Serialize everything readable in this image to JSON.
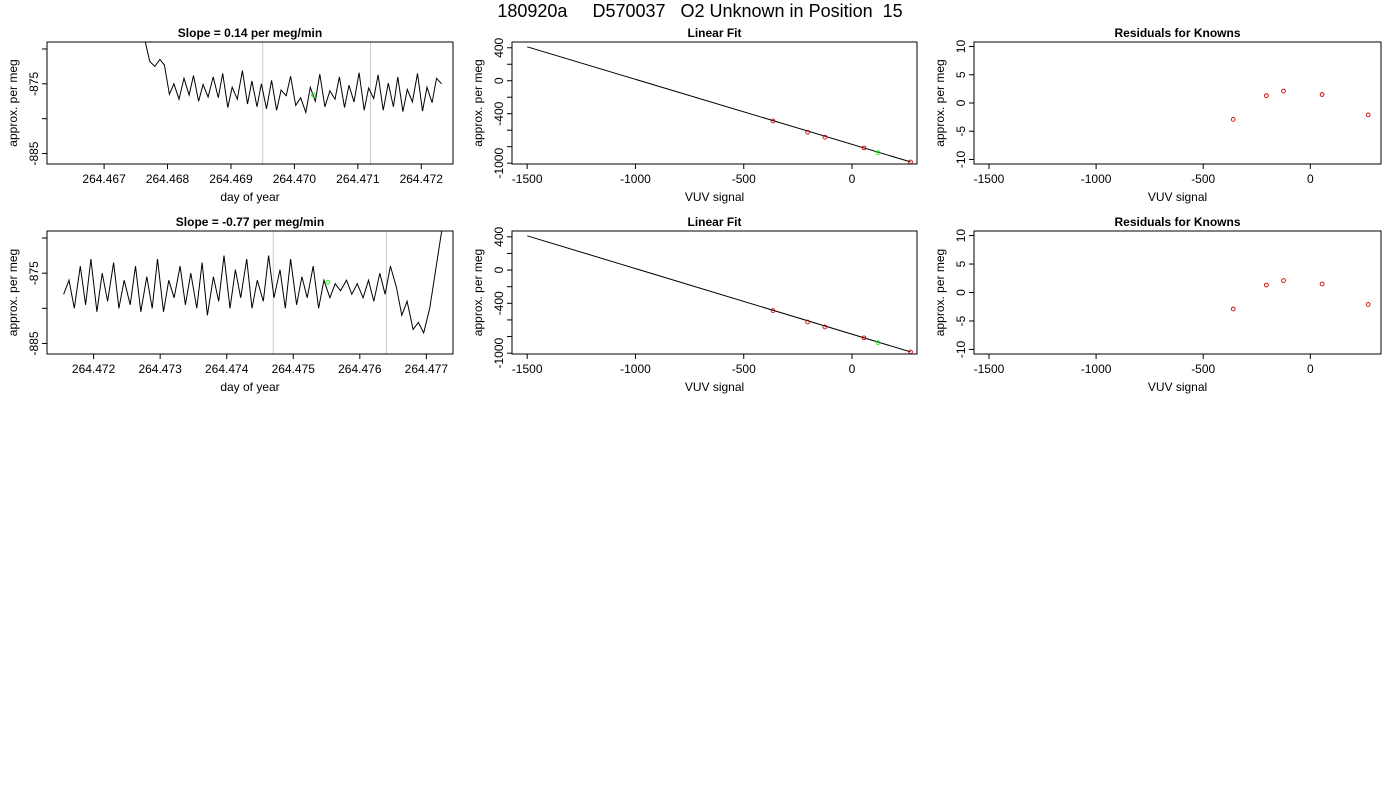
{
  "page": {
    "title": "180920a     D570037   O2 Unknown in Position  15"
  },
  "chart_data": [
    {
      "type": "line",
      "title": "Slope =  0.14  per meg/min",
      "xlabel": "day of year",
      "ylabel": "approx. per meg",
      "xlim": [
        264.4661,
        264.4725
      ],
      "ylim": [
        -886.5,
        -869.0
      ],
      "xticks": [
        "264.467",
        "264.468",
        "264.469",
        "264.470",
        "264.471",
        "264.472"
      ],
      "xtick_values": [
        264.467,
        264.468,
        264.469,
        264.47,
        264.471,
        264.472
      ],
      "yticks": [
        "-885",
        "-875"
      ],
      "ytick_values": [
        -885,
        -875
      ],
      "yticks_minor": [
        -880,
        -870
      ],
      "vlines": [
        264.4695,
        264.4712
      ],
      "series": [
        {
          "style": "line",
          "color": "#000000",
          "x": [
            264.46765,
            264.46772,
            264.4678,
            264.46788,
            264.46795,
            264.46803,
            264.4681,
            264.46818,
            264.46826,
            264.46834,
            264.46841,
            264.46849,
            264.46856,
            264.46864,
            264.46872,
            264.4688,
            264.46887,
            264.46895,
            264.46902,
            264.4691,
            264.46918,
            264.46926,
            264.46933,
            264.46941,
            264.46948,
            264.46956,
            264.46964,
            264.46972,
            264.46979,
            264.46987,
            264.46994,
            264.47002,
            264.4701,
            264.47018,
            264.47025,
            264.47033,
            264.4704,
            264.47048,
            264.47056,
            264.47064,
            264.47071,
            264.47079,
            264.47086,
            264.47094,
            264.47102,
            264.4711,
            264.47117,
            264.47125,
            264.47132,
            264.4714,
            264.47148,
            264.47156,
            264.47163,
            264.47171,
            264.47178,
            264.47186,
            264.47194,
            264.47202,
            264.47209,
            264.47217,
            264.47224,
            264.47232
          ],
          "y": [
            -869.0,
            -871.8,
            -872.5,
            -871.5,
            -872.3,
            -876.5,
            -875.0,
            -877.2,
            -874.2,
            -876.6,
            -873.8,
            -877.5,
            -875.1,
            -876.9,
            -874.0,
            -877.0,
            -873.5,
            -878.4,
            -875.5,
            -877.2,
            -873.1,
            -877.9,
            -874.6,
            -878.3,
            -875.0,
            -878.6,
            -874.5,
            -878.8,
            -875.9,
            -876.7,
            -873.9,
            -878.1,
            -877.0,
            -879.1,
            -875.5,
            -877.5,
            -873.6,
            -878.3,
            -876.0,
            -877.2,
            -874.0,
            -878.4,
            -875.2,
            -877.6,
            -873.4,
            -878.8,
            -875.6,
            -877.1,
            -873.7,
            -878.8,
            -874.9,
            -878.3,
            -874.0,
            -879.0,
            -875.8,
            -877.6,
            -873.5,
            -878.9,
            -875.5,
            -877.7,
            -874.2,
            -875.0
          ]
        },
        {
          "style": "point",
          "color": "#00ff00",
          "x": [
            264.4703
          ],
          "y": [
            -876.6
          ]
        }
      ]
    },
    {
      "type": "scatter",
      "title": "Linear Fit",
      "xlabel": "VUV signal",
      "ylabel": "approx. per meg",
      "xlim": [
        -1570,
        300
      ],
      "ylim": [
        -1010,
        470
      ],
      "xticks": [
        "-1500",
        "-1000",
        "-500",
        "0"
      ],
      "xtick_values": [
        -1500,
        -1000,
        -500,
        0
      ],
      "yticks": [
        "-1000",
        "-400",
        "0",
        "400"
      ],
      "ytick_values": [
        -1000,
        -400,
        0,
        400
      ],
      "yticks_minor": [
        -800,
        -600,
        -200,
        200
      ],
      "series": [
        {
          "style": "line",
          "color": "#000000",
          "x": [
            -1500,
            270
          ],
          "y": [
            412,
            -985
          ]
        },
        {
          "style": "point",
          "color": "#cc0000",
          "x": [
            -365,
            -205,
            -125,
            55,
            270
          ],
          "y": [
            -488,
            -625,
            -685,
            -815,
            -985
          ]
        },
        {
          "style": "point",
          "color": "#00ff00",
          "x": [
            120
          ],
          "y": [
            -873
          ]
        }
      ]
    },
    {
      "type": "scatter",
      "title": "Residuals for Knowns",
      "xlabel": "VUV signal",
      "ylabel": "approx. per meg",
      "xlim": [
        -1570,
        330
      ],
      "ylim": [
        -10.8,
        10.8
      ],
      "xticks": [
        "-1500",
        "-1000",
        "-500",
        "0"
      ],
      "xtick_values": [
        -1500,
        -1000,
        -500,
        0
      ],
      "yticks": [
        "-10",
        "-5",
        "0",
        "5",
        "10"
      ],
      "ytick_values": [
        -10,
        -5,
        0,
        5,
        10
      ],
      "series": [
        {
          "style": "point",
          "color": "#cc0000",
          "x": [
            -360,
            -205,
            -125,
            55,
            270
          ],
          "y": [
            -2.9,
            1.3,
            2.1,
            1.5,
            -2.1
          ]
        }
      ]
    },
    {
      "type": "line",
      "title": "Slope =  -0.77  per meg/min",
      "xlabel": "day of year",
      "ylabel": "approx. per meg",
      "xlim": [
        264.4713,
        264.4774
      ],
      "ylim": [
        -886.5,
        -869.0
      ],
      "xticks": [
        "264.472",
        "264.473",
        "264.474",
        "264.475",
        "264.476",
        "264.477"
      ],
      "xtick_values": [
        264.472,
        264.473,
        264.474,
        264.475,
        264.476,
        264.477
      ],
      "yticks": [
        "-885",
        "-875"
      ],
      "ytick_values": [
        -885,
        -875
      ],
      "yticks_minor": [
        -880,
        -870
      ],
      "vlines": [
        264.4747,
        264.4764
      ],
      "series": [
        {
          "style": "line",
          "color": "#000000",
          "x": [
            264.47155,
            264.47163,
            264.47171,
            264.4718,
            264.47188,
            264.47196,
            264.47205,
            264.47213,
            264.47221,
            264.4723,
            264.47238,
            264.47246,
            264.47255,
            264.47263,
            264.47271,
            264.4728,
            264.47288,
            264.47296,
            264.47305,
            264.47313,
            264.47321,
            264.4733,
            264.47338,
            264.47346,
            264.47355,
            264.47363,
            264.47371,
            264.4738,
            264.47388,
            264.47396,
            264.47405,
            264.47413,
            264.47421,
            264.4743,
            264.47438,
            264.47446,
            264.47455,
            264.47463,
            264.47471,
            264.4748,
            264.47488,
            264.47496,
            264.47505,
            264.47513,
            264.47521,
            264.4753,
            264.47538,
            264.47546,
            264.47555,
            264.47563,
            264.47571,
            264.4758,
            264.47588,
            264.47596,
            264.47605,
            264.47613,
            264.47621,
            264.4763,
            264.47638,
            264.47646,
            264.47655,
            264.47663,
            264.47671,
            264.4768,
            264.47688,
            264.47696,
            264.47705,
            264.4771,
            264.47718,
            264.47723
          ],
          "y": [
            -878.0,
            -876.0,
            -880.0,
            -874.0,
            -879.5,
            -873.0,
            -880.5,
            -875.0,
            -879.0,
            -873.5,
            -880.0,
            -876.0,
            -879.5,
            -874.0,
            -880.5,
            -875.5,
            -880.0,
            -873.0,
            -880.5,
            -876.0,
            -878.5,
            -874.0,
            -879.5,
            -875.0,
            -880.0,
            -873.5,
            -881.0,
            -875.5,
            -879.0,
            -872.5,
            -880.0,
            -874.5,
            -878.5,
            -873.0,
            -880.0,
            -876.0,
            -879.0,
            -872.5,
            -878.5,
            -874.5,
            -880.0,
            -873.0,
            -879.5,
            -875.5,
            -878.5,
            -874.0,
            -880.0,
            -876.0,
            -878.5,
            -876.5,
            -877.5,
            -876.0,
            -878.0,
            -876.5,
            -878.5,
            -876.0,
            -879.0,
            -875.0,
            -878.0,
            -874.0,
            -877.0,
            -881.0,
            -879.0,
            -883.0,
            -882.0,
            -883.5,
            -880.0,
            -877.0,
            -872.0,
            -869.0
          ]
        },
        {
          "style": "point",
          "color": "#00ff00",
          "x": [
            264.47552
          ],
          "y": [
            -876.3
          ]
        }
      ]
    },
    {
      "type": "scatter",
      "title": "Linear Fit",
      "xlabel": "VUV signal",
      "ylabel": "approx. per meg",
      "xlim": [
        -1570,
        300
      ],
      "ylim": [
        -1010,
        470
      ],
      "xticks": [
        "-1500",
        "-1000",
        "-500",
        "0"
      ],
      "xtick_values": [
        -1500,
        -1000,
        -500,
        0
      ],
      "yticks": [
        "-1000",
        "-400",
        "0",
        "400"
      ],
      "ytick_values": [
        -1000,
        -400,
        0,
        400
      ],
      "yticks_minor": [
        -800,
        -600,
        -200,
        200
      ],
      "series": [
        {
          "style": "line",
          "color": "#000000",
          "x": [
            -1500,
            270
          ],
          "y": [
            412,
            -985
          ]
        },
        {
          "style": "point",
          "color": "#cc0000",
          "x": [
            -365,
            -205,
            -125,
            55,
            270
          ],
          "y": [
            -488,
            -625,
            -685,
            -815,
            -985
          ]
        },
        {
          "style": "point",
          "color": "#00ff00",
          "x": [
            120
          ],
          "y": [
            -873
          ]
        }
      ]
    },
    {
      "type": "scatter",
      "title": "Residuals for Knowns",
      "xlabel": "VUV signal",
      "ylabel": "approx. per meg",
      "xlim": [
        -1570,
        330
      ],
      "ylim": [
        -10.8,
        10.8
      ],
      "xticks": [
        "-1500",
        "-1000",
        "-500",
        "0"
      ],
      "xtick_values": [
        -1500,
        -1000,
        -500,
        0
      ],
      "yticks": [
        "-10",
        "-5",
        "0",
        "5",
        "10"
      ],
      "ytick_values": [
        -10,
        -5,
        0,
        5,
        10
      ],
      "series": [
        {
          "style": "point",
          "color": "#cc0000",
          "x": [
            -360,
            -205,
            -125,
            55,
            270
          ],
          "y": [
            -2.9,
            1.3,
            2.1,
            1.5,
            -2.1
          ]
        }
      ]
    }
  ]
}
